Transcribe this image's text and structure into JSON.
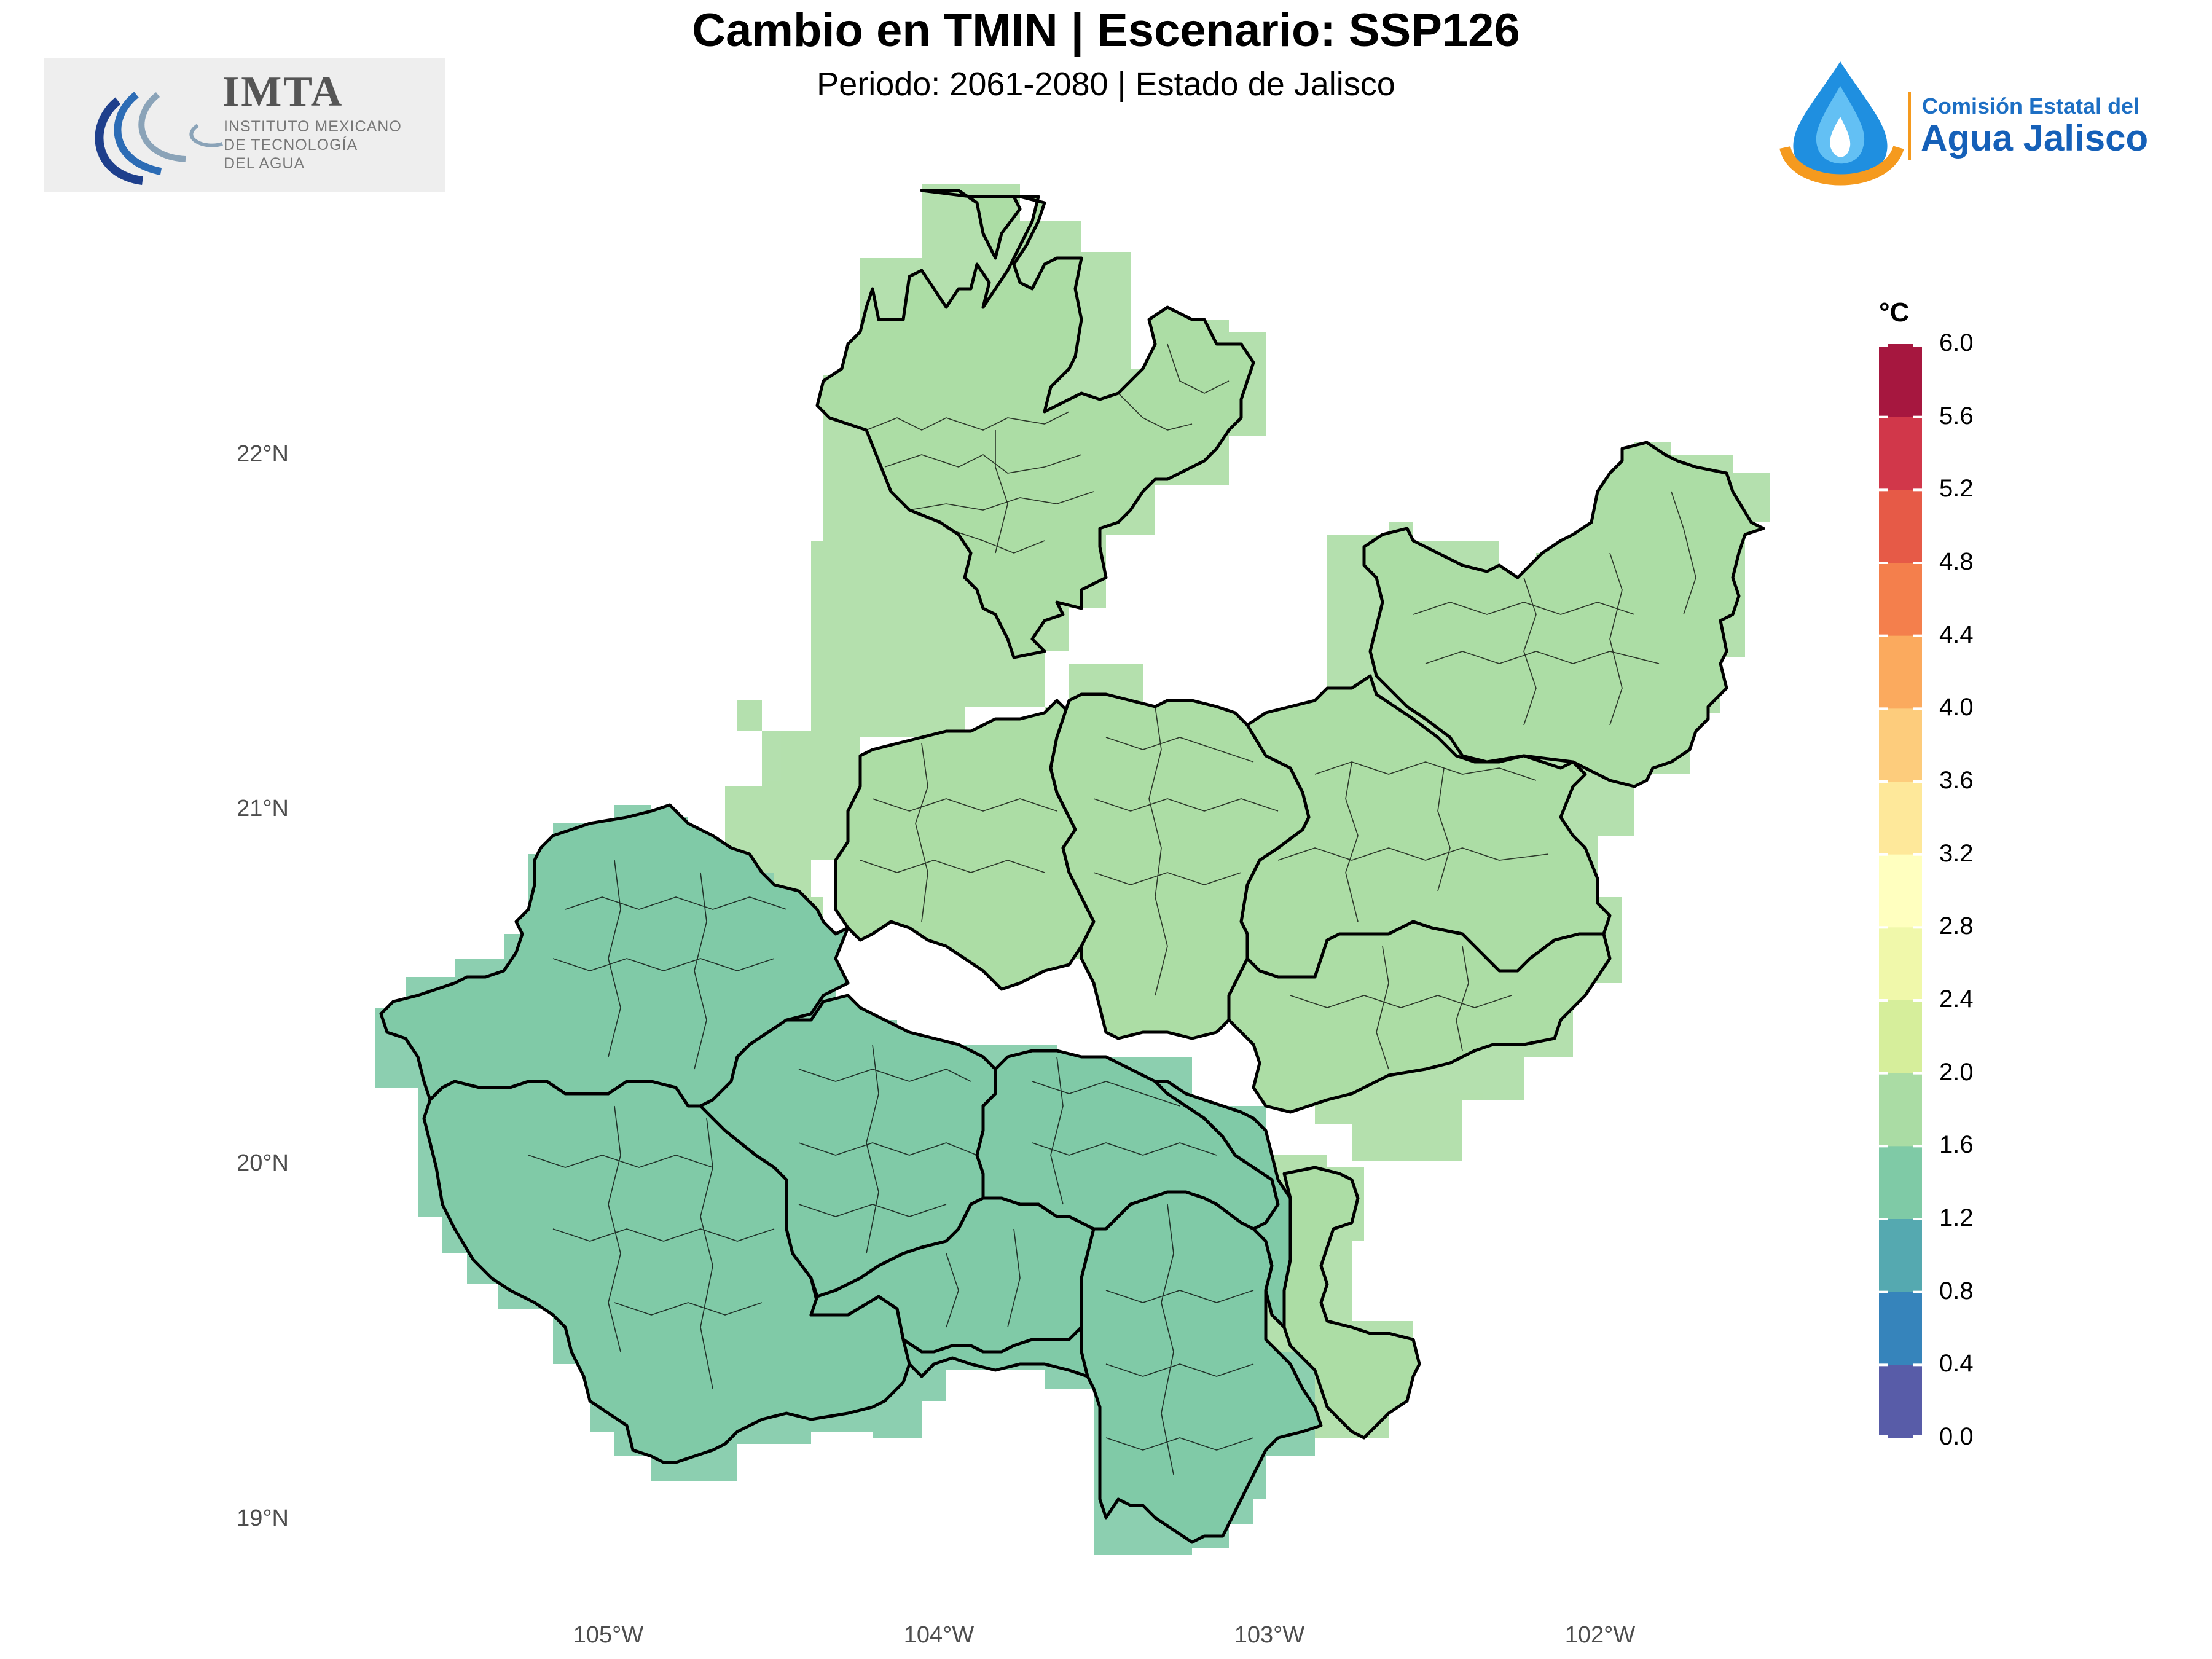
{
  "title": "Cambio en TMIN | Escenario: SSP126",
  "subtitle": "Periodo: 2061-2080 | Estado de Jalisco",
  "logos": {
    "left": {
      "name": "IMTA",
      "line1": "INSTITUTO MEXICANO",
      "line2": "DE TECNOLOGÍA",
      "line3": "DEL AGUA"
    },
    "right": {
      "line1": "Comisión Estatal del",
      "line2": "Agua Jalisco"
    }
  },
  "axes": {
    "lat_labels": [
      "22°N",
      "21°N",
      "20°N",
      "19°N"
    ],
    "lon_labels": [
      "105°W",
      "104°W",
      "103°W",
      "102°W"
    ]
  },
  "legend": {
    "unit": "°C",
    "ticks": [
      "6.0",
      "5.6",
      "5.2",
      "4.8",
      "4.4",
      "4.0",
      "3.6",
      "3.2",
      "2.8",
      "2.4",
      "2.0",
      "1.6",
      "1.2",
      "0.8",
      "0.4",
      "0.0"
    ],
    "colors_top_to_bottom": [
      "#a6173f",
      "#d1374a",
      "#e65a47",
      "#f47f4c",
      "#fbaa5e",
      "#fdcc7c",
      "#fee89a",
      "#ffffbf",
      "#f0f8aa",
      "#d6ee9b",
      "#aadca4",
      "#7fcaa6",
      "#55a9b0",
      "#3684bb",
      "#585ca8"
    ]
  },
  "regions": {
    "north_value_class": "1.6-2.0",
    "south_value_class": "1.2-1.6",
    "colors": {
      "north": "#acdda5",
      "south": "#80caa7"
    }
  }
}
